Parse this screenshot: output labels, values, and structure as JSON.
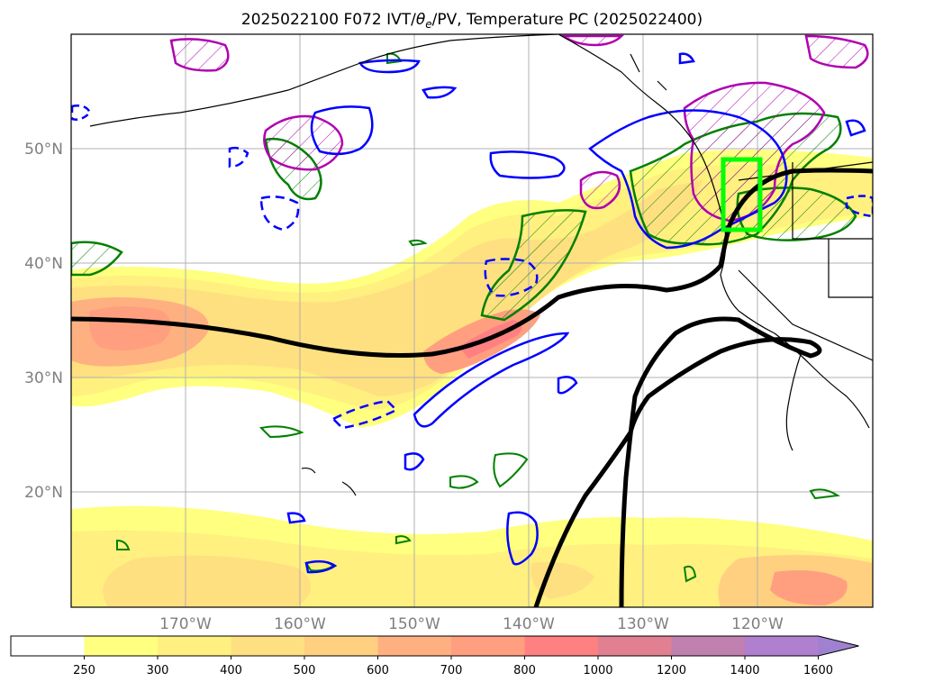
{
  "title": "2025022100 F072 IVT/",
  "title_theta": "θ",
  "title_sub": "e",
  "title_rest": "/PV, Temperature PC (2025022400)",
  "map": {
    "lat_labels": [
      "50°N",
      "40°N",
      "30°N",
      "20°N"
    ],
    "lon_labels": [
      "170°W",
      "160°W",
      "150°W",
      "140°W",
      "130°W",
      "120°W"
    ],
    "gridlines": true,
    "colors": {
      "frame": "#000000",
      "grid": "#b0b0b0",
      "coast": "#000000",
      "pv_contour": "#0000ff",
      "theta_contour": "#008000",
      "pc_contour": "#b000b0",
      "temperature_pc_line": "#000000",
      "highlight_box": "#00ff00"
    }
  },
  "colorbar": {
    "labels": [
      "250",
      "300",
      "400",
      "500",
      "600",
      "700",
      "800",
      "1000",
      "1200",
      "1400",
      "1600"
    ],
    "colors": [
      "#ffffff",
      "#ffff80",
      "#fff080",
      "#ffe080",
      "#ffd080",
      "#ffb080",
      "#ff9f80",
      "#ff8080",
      "#e08090",
      "#c080b0",
      "#b080d0",
      "#a080d0"
    ],
    "extend": "max"
  }
}
